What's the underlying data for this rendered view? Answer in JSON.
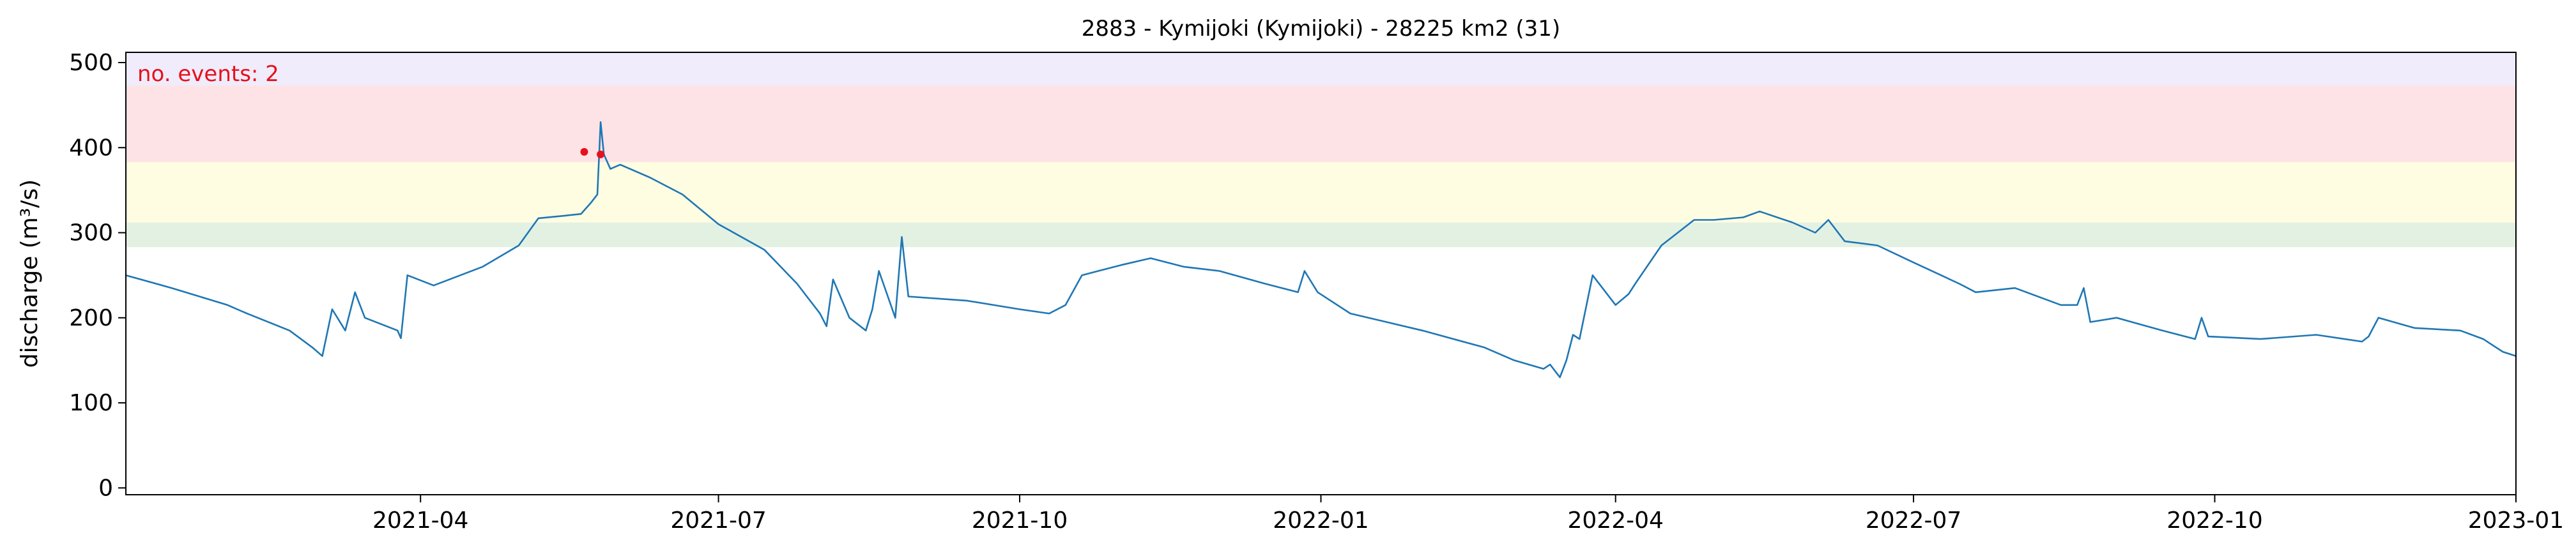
{
  "chart_data": {
    "type": "line",
    "title": "2883 - Kymijoki (Kymijoki) - 28225 km2 (31)",
    "ylabel": "discharge (m³/s)",
    "xlabel": "",
    "annotation": "no. events: 2",
    "xlim": [
      "2021-01-01",
      "2023-01-01"
    ],
    "ylim": [
      -8,
      512
    ],
    "xticks": [
      "2021-04",
      "2021-07",
      "2021-10",
      "2022-01",
      "2022-04",
      "2022-07",
      "2022-10",
      "2023-01"
    ],
    "yticks": [
      0,
      100,
      200,
      300,
      400,
      500
    ],
    "grid": false,
    "threshold_bands": [
      {
        "from": 283,
        "to": 312,
        "color": "#e3f1e3"
      },
      {
        "from": 312,
        "to": 383,
        "color": "#fefde2"
      },
      {
        "from": 383,
        "to": 473,
        "color": "#fee3e6"
      },
      {
        "from": 473,
        "to": 512,
        "color": "#f0ecfb"
      }
    ],
    "colors": {
      "line": "#1f77b4",
      "events": "#e8101a",
      "annotation": "#e8101a"
    },
    "series": [
      {
        "x": [
          "2021-01-01",
          "2021-01-15",
          "2021-02-01",
          "2021-02-07",
          "2021-02-20",
          "2021-02-27",
          "2021-03-02",
          "2021-03-05",
          "2021-03-09",
          "2021-03-12",
          "2021-03-15",
          "2021-03-25",
          "2021-03-26",
          "2021-03-28",
          "2021-04-05",
          "2021-04-20",
          "2021-05-01",
          "2021-05-07",
          "2021-05-15",
          "2021-05-20",
          "2021-05-23",
          "2021-05-25",
          "2021-05-26",
          "2021-05-27",
          "2021-05-29",
          "2021-06-01",
          "2021-06-10",
          "2021-06-20",
          "2021-07-01",
          "2021-07-15",
          "2021-07-25",
          "2021-08-01",
          "2021-08-03",
          "2021-08-05",
          "2021-08-10",
          "2021-08-15",
          "2021-08-17",
          "2021-08-19",
          "2021-08-24",
          "2021-08-26",
          "2021-08-28",
          "2021-09-15",
          "2021-10-01",
          "2021-10-10",
          "2021-10-15",
          "2021-10-20",
          "2021-10-25",
          "2021-11-01",
          "2021-11-10",
          "2021-11-20",
          "2021-12-01",
          "2021-12-15",
          "2021-12-25",
          "2021-12-27",
          "2021-12-31",
          "2022-01-10",
          "2022-02-01",
          "2022-02-20",
          "2022-03-01",
          "2022-03-10",
          "2022-03-12",
          "2022-03-15",
          "2022-03-17",
          "2022-03-19",
          "2022-03-21",
          "2022-03-25",
          "2022-04-01",
          "2022-04-05",
          "2022-04-07",
          "2022-04-15",
          "2022-04-25",
          "2022-05-01",
          "2022-05-10",
          "2022-05-15",
          "2022-05-25",
          "2022-06-01",
          "2022-06-05",
          "2022-06-10",
          "2022-06-20",
          "2022-07-01",
          "2022-07-15",
          "2022-07-20",
          "2022-08-01",
          "2022-08-15",
          "2022-08-20",
          "2022-08-22",
          "2022-08-24",
          "2022-09-01",
          "2022-09-15",
          "2022-09-25",
          "2022-09-27",
          "2022-09-29",
          "2022-10-15",
          "2022-11-01",
          "2022-11-15",
          "2022-11-17",
          "2022-11-20",
          "2022-12-01",
          "2022-12-15",
          "2022-12-22",
          "2022-12-24",
          "2022-12-28",
          "2023-01-01"
        ],
        "y": [
          250,
          235,
          215,
          205,
          185,
          165,
          155,
          210,
          185,
          230,
          200,
          185,
          176,
          250,
          238,
          260,
          285,
          317,
          320,
          322,
          335,
          345,
          430,
          392,
          375,
          380,
          365,
          345,
          310,
          280,
          240,
          205,
          190,
          245,
          200,
          185,
          210,
          255,
          200,
          295,
          225,
          220,
          210,
          205,
          215,
          250,
          255,
          262,
          270,
          260,
          255,
          240,
          230,
          255,
          230,
          205,
          185,
          165,
          150,
          140,
          145,
          130,
          150,
          180,
          175,
          250,
          215,
          228,
          240,
          285,
          315,
          315,
          318,
          325,
          312,
          300,
          315,
          290,
          285,
          265,
          240,
          230,
          235,
          215,
          215,
          235,
          195,
          200,
          185,
          175,
          200,
          178,
          175,
          180,
          172,
          178,
          200,
          188,
          185,
          175,
          170,
          160,
          155
        ]
      }
    ],
    "events": [
      {
        "x": "2021-05-21",
        "y": 395
      },
      {
        "x": "2021-05-26",
        "y": 392
      }
    ]
  }
}
